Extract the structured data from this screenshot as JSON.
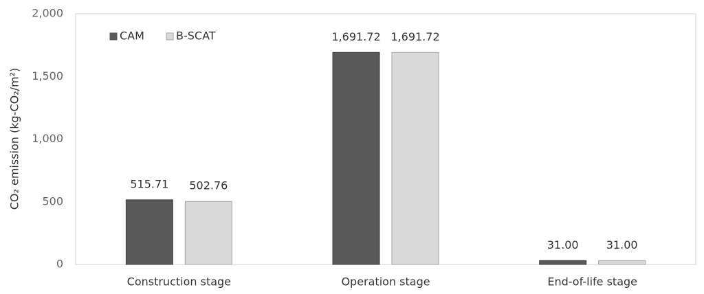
{
  "chart_data": {
    "type": "bar",
    "y_label": "CO₂ emission (kg-CO₂/m²)",
    "categories": [
      "Construction stage",
      "Operation stage",
      "End-of-life stage"
    ],
    "series": [
      {
        "name": "CAM",
        "color": "#595959",
        "values": [
          515.71,
          1691.72,
          31
        ],
        "value_labels": [
          "515.71",
          "1,691.72",
          "31.00"
        ]
      },
      {
        "name": "B-SCAT",
        "color": "#d9d9d9",
        "values": [
          502.76,
          1691.72,
          31
        ],
        "value_labels": [
          "502.76",
          "1,691.72",
          "31.00"
        ]
      }
    ],
    "ylim": [
      0,
      2000
    ],
    "yticks": [
      0,
      500,
      {
        "value": 1000,
        "label": "1,000"
      },
      {
        "value": 1500,
        "label": "1,500"
      },
      {
        "value": 2000,
        "label": "2,000"
      }
    ],
    "grid": false,
    "legend": "top-left"
  }
}
